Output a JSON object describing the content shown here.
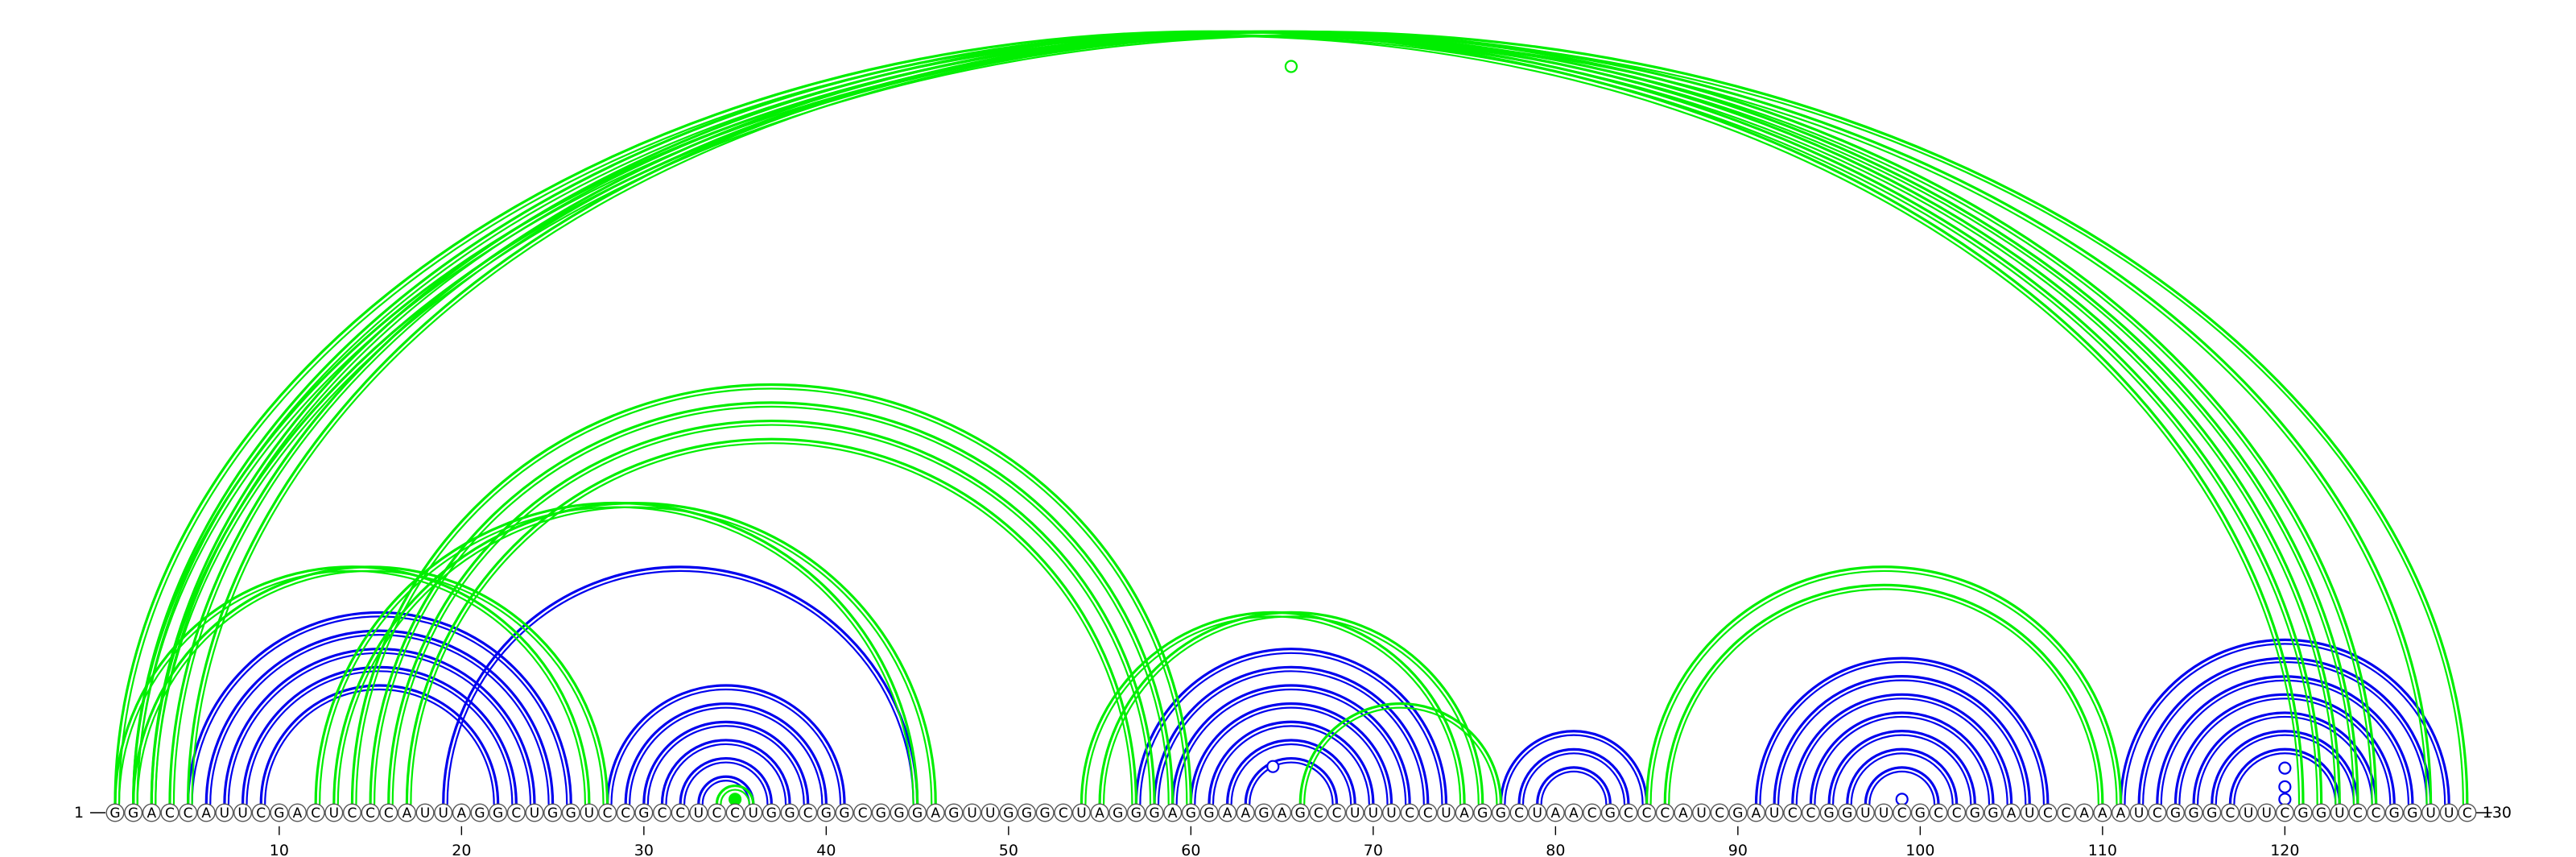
{
  "sequence": "GGACCAUUCGACUCCCAUUAGGCUGGUCCGCCUCCUGGCGGCGGGAGUUGGGCUAGGGAGGAAGAGCCUUUCCUAGGCUAACGCCCAUCGAUCCGGUUCGCCGGAUCCAAAUCGGGCUUCGGUCCGGUUC",
  "start_label": "1",
  "end_label": "130",
  "ticks": [
    "10",
    "20",
    "30",
    "40",
    "50",
    "60",
    "70",
    "80",
    "90",
    "100",
    "110",
    "120"
  ],
  "colors": {
    "blue": "#0000ee",
    "green": "#00ee00"
  },
  "chart_data": {
    "type": "arc-diagram",
    "length": 130,
    "blue_pairs": [
      [
        5,
        26
      ],
      [
        6,
        25
      ],
      [
        7,
        24
      ],
      [
        8,
        23
      ],
      [
        9,
        22
      ],
      [
        28,
        41
      ],
      [
        29,
        40
      ],
      [
        30,
        39
      ],
      [
        31,
        38
      ],
      [
        32,
        37
      ],
      [
        33,
        36
      ],
      [
        19,
        45
      ],
      [
        57,
        74
      ],
      [
        58,
        73
      ],
      [
        59,
        72
      ],
      [
        60,
        71
      ],
      [
        61,
        70
      ],
      [
        62,
        69
      ],
      [
        63,
        68
      ],
      [
        77,
        85
      ],
      [
        78,
        84
      ],
      [
        79,
        83
      ],
      [
        91,
        107
      ],
      [
        92,
        106
      ],
      [
        93,
        105
      ],
      [
        94,
        104
      ],
      [
        95,
        103
      ],
      [
        96,
        102
      ],
      [
        97,
        101
      ],
      [
        111,
        129
      ],
      [
        112,
        128
      ],
      [
        113,
        127
      ],
      [
        114,
        126
      ],
      [
        115,
        125
      ],
      [
        116,
        124
      ],
      [
        117,
        123
      ]
    ],
    "green_pairs": [
      [
        1,
        121
      ],
      [
        2,
        122
      ],
      [
        3,
        123
      ],
      [
        4,
        124
      ],
      [
        5,
        125
      ],
      [
        2,
        128
      ],
      [
        3,
        130
      ],
      [
        14,
        60
      ],
      [
        15,
        59
      ],
      [
        16,
        58
      ],
      [
        17,
        57
      ],
      [
        12,
        45
      ],
      [
        13,
        46
      ],
      [
        1,
        27
      ],
      [
        2,
        28
      ],
      [
        54,
        75
      ],
      [
        55,
        76
      ],
      [
        66,
        77
      ],
      [
        85,
        111
      ],
      [
        86,
        110
      ],
      [
        34,
        36
      ]
    ],
    "markers": [
      {
        "at": 65.5,
        "height": 0.945,
        "color": "green",
        "filled": false
      },
      {
        "at": 64.5,
        "height": 0.048,
        "color": "blue",
        "filled": false
      },
      {
        "at": 120,
        "height": 0.046,
        "color": "blue",
        "filled": false
      },
      {
        "at": 120,
        "height": 0.022,
        "color": "blue",
        "filled": false
      },
      {
        "at": 120,
        "height": 0.006,
        "color": "blue",
        "filled": false
      },
      {
        "at": 99,
        "height": 0.006,
        "color": "blue",
        "filled": false
      },
      {
        "at": 35,
        "height": 0.006,
        "color": "green",
        "filled": true
      }
    ]
  }
}
